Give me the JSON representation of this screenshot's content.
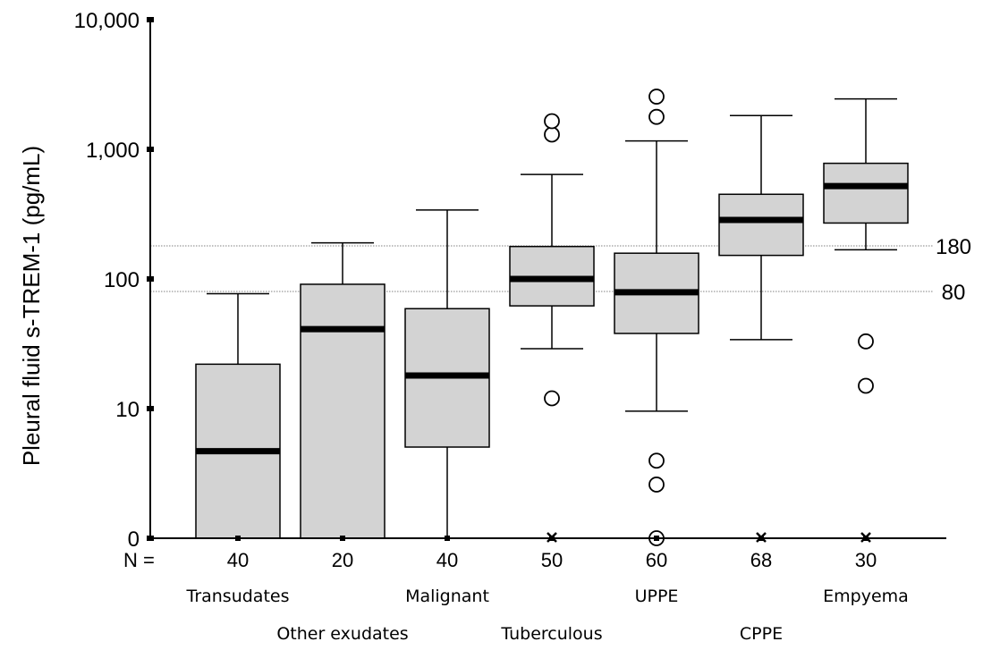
{
  "chart_data": {
    "type": "box",
    "title": "",
    "ylabel": "Pleural fluid s-TREM-1 (pg/mL)",
    "xlabel": "",
    "y_scale": "log",
    "ylim": [
      0,
      10000
    ],
    "y_ticks": [
      {
        "value": 0,
        "label": "0"
      },
      {
        "value": 10,
        "label": "10"
      },
      {
        "value": 100,
        "label": "100"
      },
      {
        "value": 1000,
        "label": "1,000"
      },
      {
        "value": 10000,
        "label": "10,000"
      }
    ],
    "n_prefix": "N =",
    "groups": [
      {
        "name": "Transudates",
        "n": "40",
        "q1": 0,
        "median": 4,
        "q3": 22,
        "whisker_low": 0,
        "whisker_high": 77,
        "outliers": [],
        "extremes": []
      },
      {
        "name": "Other exudates",
        "n": "20",
        "q1": 0,
        "median": 41,
        "q3": 91,
        "whisker_low": 0,
        "whisker_high": 190,
        "outliers": [],
        "extremes": []
      },
      {
        "name": "Malignant",
        "n": "40",
        "q1": 4.4,
        "median": 18,
        "q3": 59,
        "whisker_low": 0,
        "whisker_high": 340,
        "outliers": [],
        "extremes": []
      },
      {
        "name": "Tuberculous",
        "n": "50",
        "q1": 62,
        "median": 100,
        "q3": 178,
        "whisker_low": 29,
        "whisker_high": 640,
        "outliers": [
          12,
          1300,
          1650
        ],
        "extremes": [
          0
        ]
      },
      {
        "name": "UPPE",
        "n": "60",
        "q1": 38,
        "median": 79,
        "q3": 158,
        "whisker_low": 9.5,
        "whisker_high": 1160,
        "outliers": [
          0,
          1.7,
          3.2,
          1780,
          2550
        ],
        "extremes": []
      },
      {
        "name": "CPPE",
        "n": "68",
        "q1": 152,
        "median": 285,
        "q3": 450,
        "whisker_low": 34,
        "whisker_high": 1820,
        "outliers": [],
        "extremes": [
          0
        ]
      },
      {
        "name": "Empyema",
        "n": "30",
        "q1": 270,
        "median": 520,
        "q3": 780,
        "whisker_low": 168,
        "whisker_high": 2450,
        "outliers": [
          15,
          33
        ],
        "extremes": [
          0
        ]
      }
    ],
    "reference_lines": [
      {
        "value": 180,
        "label": "180"
      },
      {
        "value": 80,
        "label": "80"
      }
    ],
    "colors": {
      "box_fill": "#d3d3d3",
      "stroke": "#000000",
      "reference_line": "#808080"
    }
  }
}
